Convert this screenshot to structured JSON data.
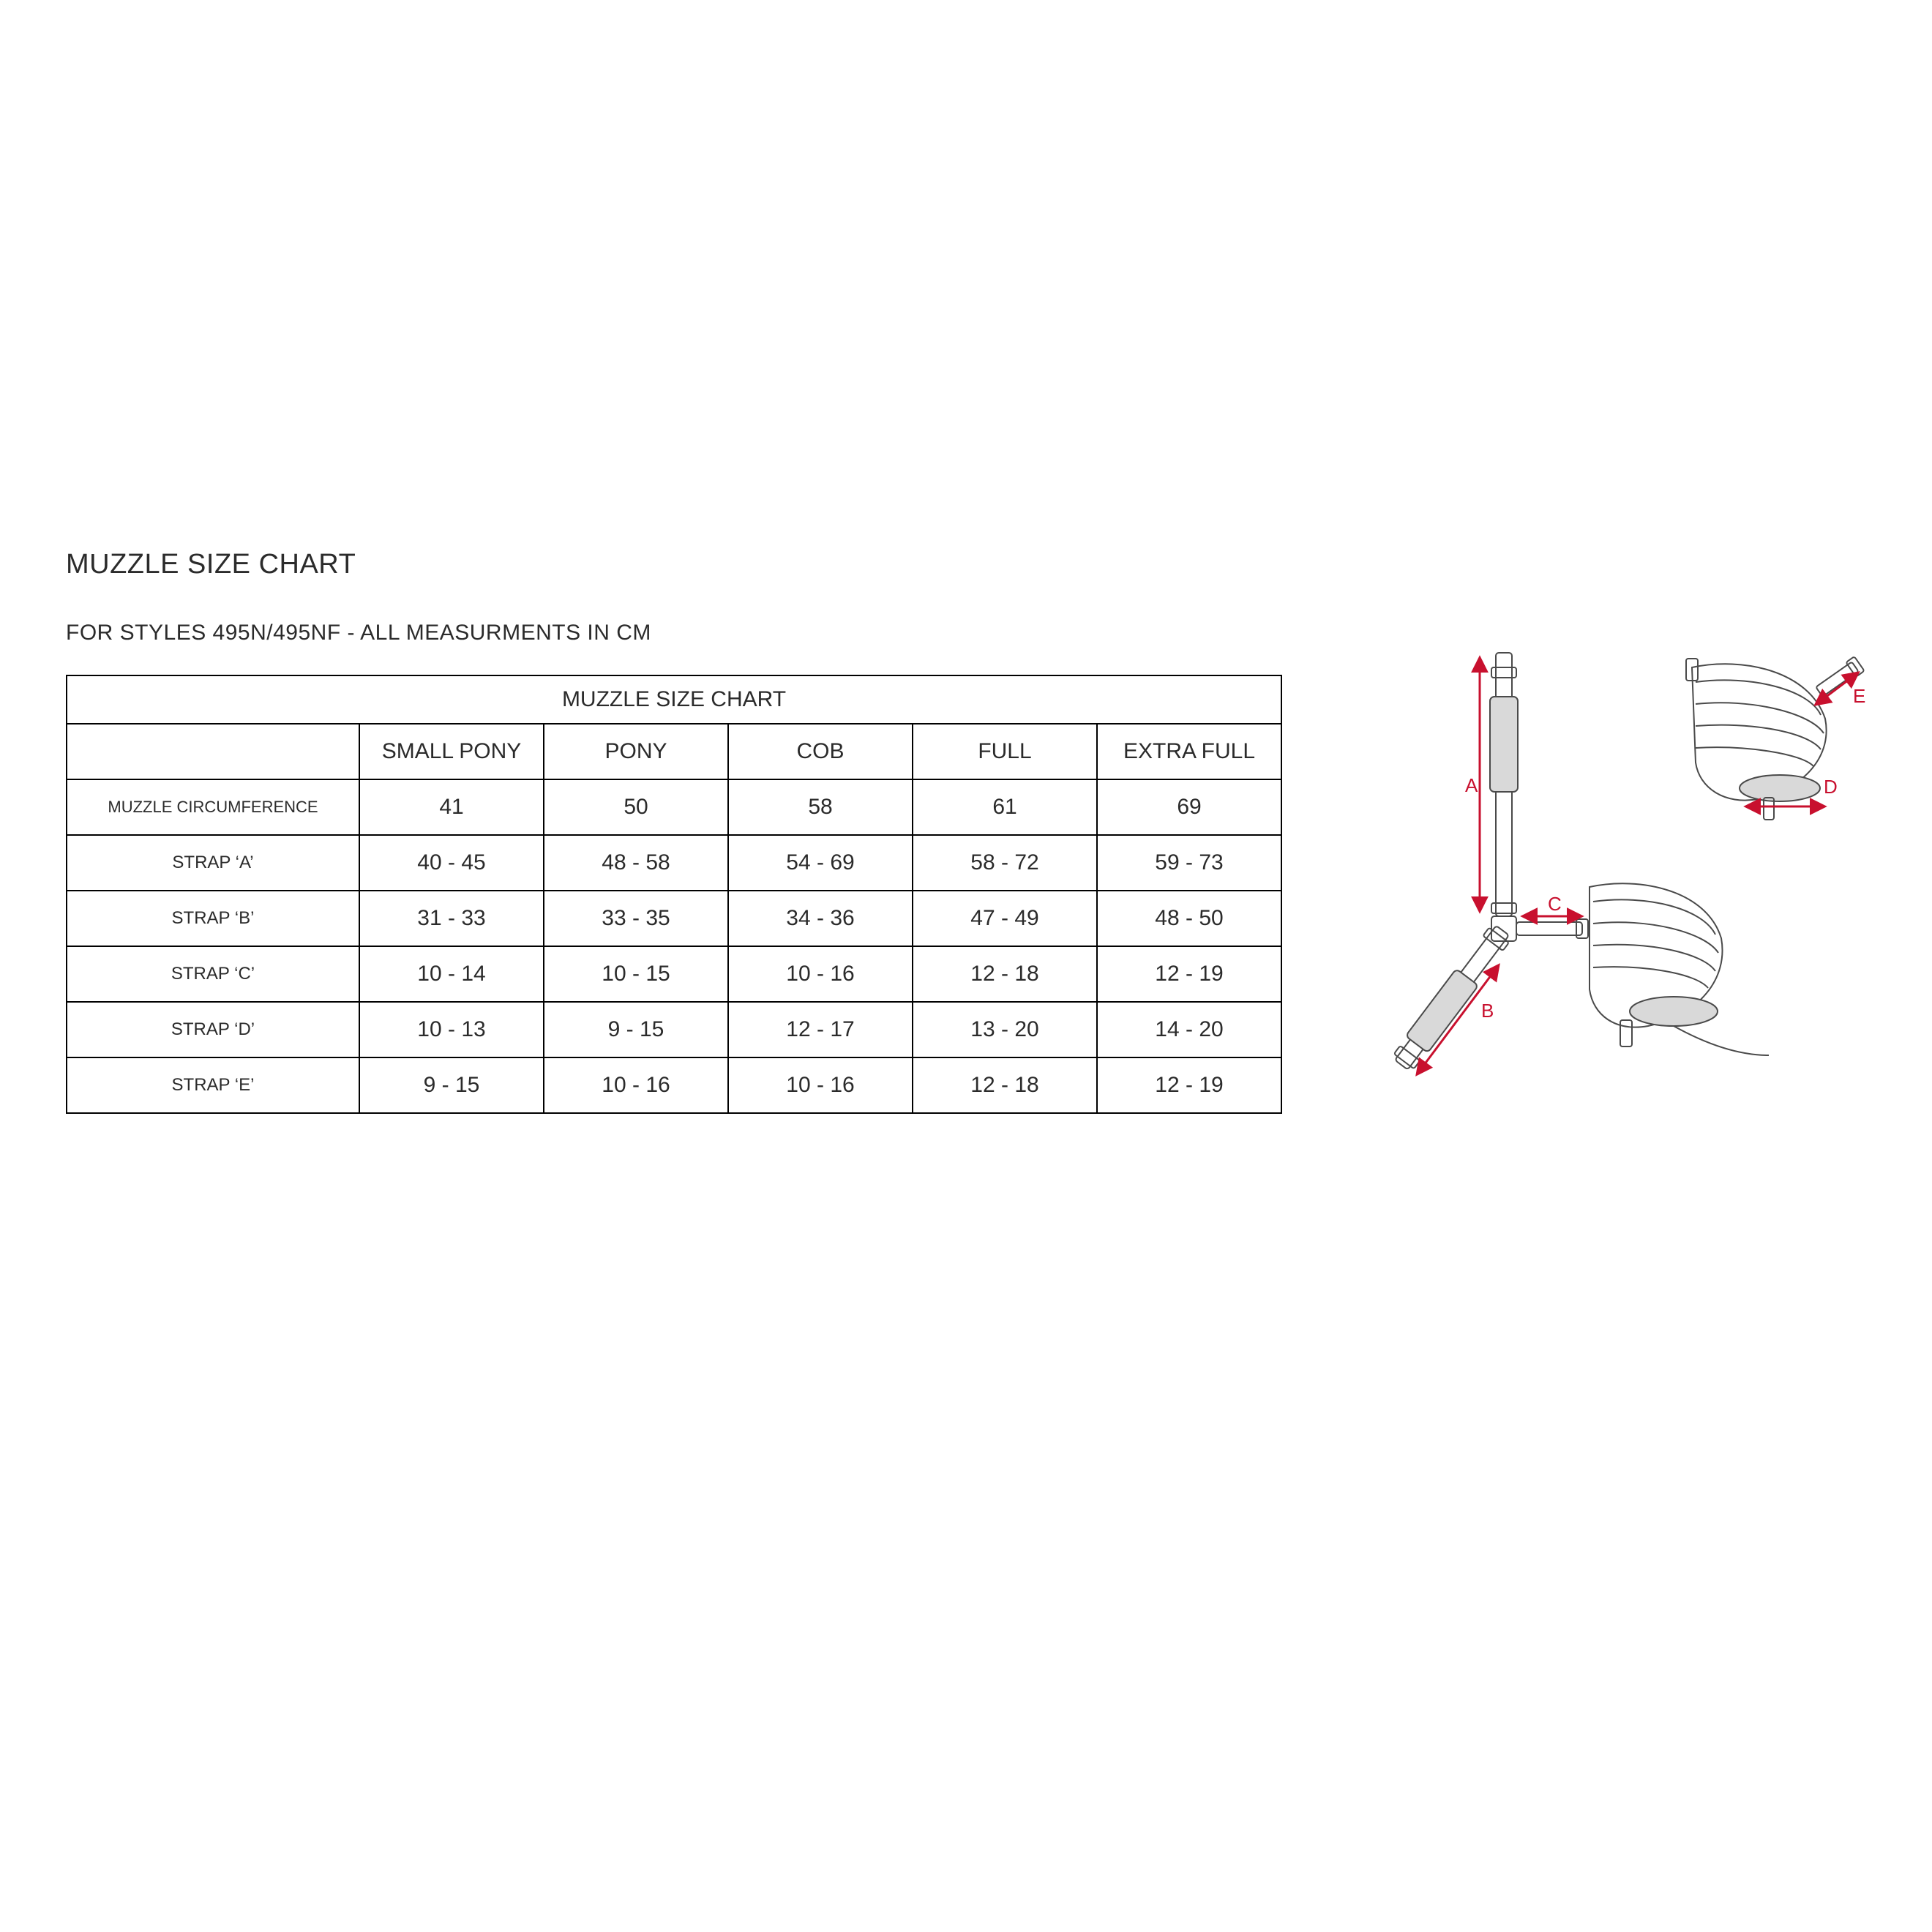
{
  "title": "MUZZLE SIZE CHART",
  "subtitle": "FOR STYLES 495N/495NF - ALL MEASURMENTS IN CM",
  "table": {
    "header_title": "MUZZLE SIZE CHART",
    "columns": [
      "SMALL PONY",
      "PONY",
      "COB",
      "FULL",
      "EXTRA FULL"
    ],
    "rows": [
      {
        "label": "MUZZLE CIRCUMFERENCE",
        "label_small": true,
        "cells": [
          "41",
          "50",
          "58",
          "61",
          "69"
        ]
      },
      {
        "label": "STRAP ‘A’",
        "cells": [
          "40 - 45",
          "48 - 58",
          "54 - 69",
          "58 - 72",
          "59 - 73"
        ]
      },
      {
        "label": "STRAP ‘B’",
        "cells": [
          "31 - 33",
          "33 - 35",
          "34 - 36",
          "47 - 49",
          "48 - 50"
        ]
      },
      {
        "label": "STRAP ‘C’",
        "cells": [
          "10 - 14",
          "10 - 15",
          "10 - 16",
          "12 - 18",
          "12 - 19"
        ]
      },
      {
        "label": "STRAP ‘D’",
        "cells": [
          "10 - 13",
          "9 - 15",
          "12 - 17",
          "13 - 20",
          "14 - 20"
        ]
      },
      {
        "label": "STRAP ‘E’",
        "cells": [
          "9 - 15",
          "10  - 16",
          "10 - 16",
          "12 - 18",
          "12 - 19"
        ]
      }
    ],
    "border_color": "#000000",
    "text_color": "#2b2b2b",
    "font_size_header": 30,
    "font_size_cells": 30,
    "font_size_rowlabel": 24
  },
  "diagram": {
    "outline_color": "#4a4a4a",
    "outline_width": 2,
    "fill_color": "#d9d9d9",
    "arrow_color": "#c8102e",
    "arrow_width": 3,
    "label_color": "#c8102e",
    "label_fontsize": 26,
    "labels": [
      "A",
      "B",
      "C",
      "D",
      "E"
    ]
  },
  "colors": {
    "background": "#ffffff",
    "text": "#2b2b2b",
    "accent": "#c8102e"
  }
}
